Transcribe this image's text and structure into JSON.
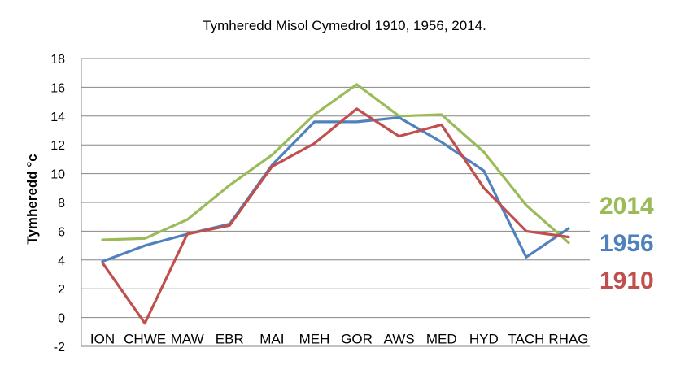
{
  "chart_data": {
    "type": "line",
    "title": "Tymheredd Misol Cymedrol 1910, 1956, 2014.",
    "xlabel": "",
    "ylabel": "Tymheredd °c",
    "categories": [
      "ION",
      "CHWE",
      "MAW",
      "EBR",
      "MAI",
      "MEH",
      "GOR",
      "AWS",
      "MED",
      "HYD",
      "TACH",
      "RHAG"
    ],
    "ylim": [
      -2,
      18
    ],
    "yticks": [
      -2,
      0,
      2,
      4,
      6,
      8,
      10,
      12,
      14,
      16,
      18
    ],
    "grid": true,
    "legend_placement": "right",
    "series": [
      {
        "name": "2014",
        "color": "#9bbb59",
        "values": [
          5.4,
          5.5,
          6.8,
          9.2,
          11.3,
          14.1,
          16.2,
          14.0,
          14.1,
          11.5,
          7.8,
          5.2
        ]
      },
      {
        "name": "1956",
        "color": "#4f81bd",
        "values": [
          3.9,
          5.0,
          5.8,
          6.5,
          10.6,
          13.6,
          13.6,
          13.9,
          12.2,
          10.2,
          4.2,
          6.2
        ]
      },
      {
        "name": "1910",
        "color": "#c0504d",
        "values": [
          3.8,
          -0.4,
          5.8,
          6.4,
          10.5,
          12.1,
          14.5,
          12.6,
          13.4,
          9.0,
          6.0,
          5.6
        ]
      }
    ]
  }
}
